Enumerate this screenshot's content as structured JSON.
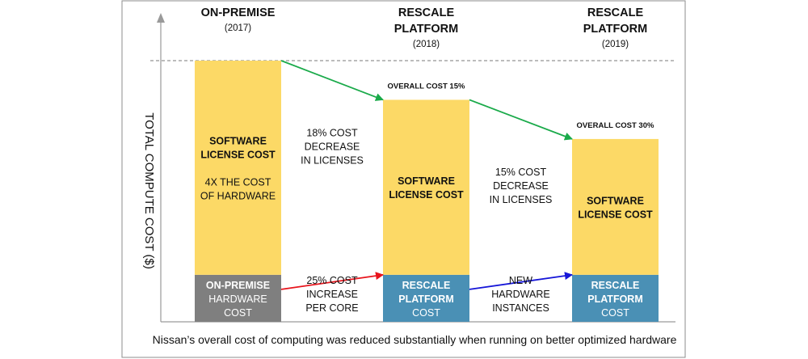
{
  "chart_data": {
    "type": "bar",
    "stacked": true,
    "ylabel": "TOTAL COMPUTE COST ($)",
    "caption": "Nissan’s overall cost of computing was reduced substantially when running on better optimized hardware",
    "ylim": [
      0,
      100
    ],
    "grid": false,
    "reference_line": {
      "value": 100,
      "style": "dashed"
    },
    "categories": [
      {
        "title_lines": [
          "ON-PREMISE"
        ],
        "year": "(2017)"
      },
      {
        "title_lines": [
          "RESCALE",
          "PLATFORM"
        ],
        "year": "(2018)"
      },
      {
        "title_lines": [
          "RESCALE",
          "PLATFORM"
        ],
        "year": "(2019)"
      }
    ],
    "series": [
      {
        "key": "hardware",
        "values": [
          18,
          18,
          18
        ],
        "colors": [
          "#7f7f7f",
          "#4a90b5",
          "#4a90b5"
        ],
        "bar_labels": [
          [
            [
              "ON-PREMISE",
              true
            ],
            [
              "HARDWARE",
              false
            ],
            [
              "COST",
              false
            ]
          ],
          [
            [
              "RESCALE",
              true
            ],
            [
              "PLATFORM",
              true
            ],
            [
              "COST",
              false
            ]
          ],
          [
            [
              "RESCALE",
              true
            ],
            [
              "PLATFORM",
              true
            ],
            [
              "COST",
              false
            ]
          ]
        ]
      },
      {
        "key": "software",
        "values": [
          82,
          67,
          52
        ],
        "colors": [
          "#fcd966",
          "#fcd966",
          "#fcd966"
        ],
        "bar_labels": [
          [
            [
              "SOFTWARE",
              true
            ],
            [
              "LICENSE COST",
              true
            ],
            [
              "",
              false
            ],
            [
              "4X THE COST",
              false
            ],
            [
              "OF HARDWARE",
              false
            ]
          ],
          [
            [
              "SOFTWARE",
              true
            ],
            [
              "LICENSE COST",
              true
            ]
          ],
          [
            [
              "SOFTWARE",
              true
            ],
            [
              "LICENSE COST",
              true
            ]
          ]
        ]
      }
    ],
    "totals_labels": [
      "",
      "OVERALL COST 15%",
      "OVERALL COST 30%"
    ],
    "annotations": [
      {
        "from_bar": 0,
        "to_bar": 1,
        "level": "top",
        "color": "#1aaa4a",
        "text_lines": [
          "18% COST",
          "DECREASE",
          "IN LICENSES"
        ]
      },
      {
        "from_bar": 1,
        "to_bar": 2,
        "level": "top",
        "color": "#1aaa4a",
        "text_lines": [
          "15% COST",
          "DECREASE",
          "IN LICENSES"
        ]
      },
      {
        "from_bar": 0,
        "to_bar": 1,
        "level": "hardware",
        "color": "#e8141c",
        "text_lines": [
          "25% COST",
          "INCREASE",
          "PER CORE"
        ]
      },
      {
        "from_bar": 1,
        "to_bar": 2,
        "level": "hardware",
        "color": "#1616d8",
        "text_lines": [
          "NEW",
          "HARDWARE",
          "INSTANCES"
        ]
      }
    ]
  }
}
